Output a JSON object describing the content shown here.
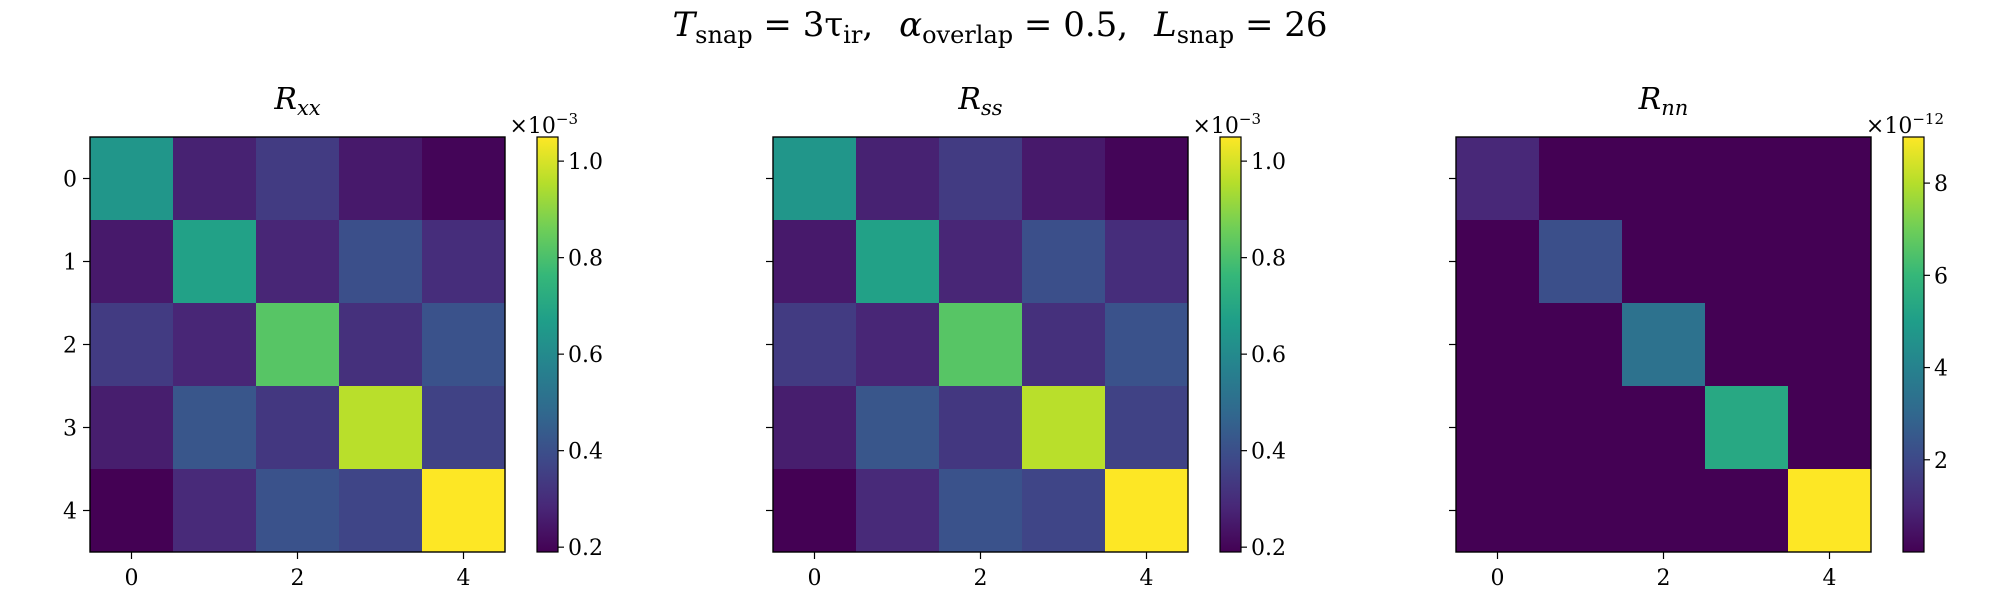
{
  "suptitle": {
    "t_symbol": "T",
    "t_sub": "snap",
    "t_rest": " = 3τ",
    "t_rest_sub": "ir",
    "a_symbol": "α",
    "a_sub": "overlap",
    "a_rest": " = 0.5,",
    "l_symbol": "L",
    "l_sub": "snap",
    "l_rest": " = 26",
    "comma1": ","
  },
  "colormap": {
    "name": "viridis",
    "stops": [
      "#440154",
      "#482878",
      "#3e4989",
      "#31688e",
      "#26828e",
      "#1f9e89",
      "#35b779",
      "#6ece58",
      "#b5de2b",
      "#fde725"
    ]
  },
  "chart_data": [
    {
      "type": "heatmap",
      "title_main": "R",
      "title_sub": "xx",
      "rows": [
        0,
        1,
        2,
        3,
        4
      ],
      "cols": [
        0,
        1,
        2,
        3,
        4
      ],
      "values": [
        [
          0.64,
          0.27,
          0.34,
          0.25,
          0.2
        ],
        [
          0.25,
          0.68,
          0.28,
          0.4,
          0.3
        ],
        [
          0.34,
          0.28,
          0.82,
          0.31,
          0.41
        ],
        [
          0.26,
          0.42,
          0.33,
          0.96,
          0.36
        ],
        [
          0.19,
          0.29,
          0.41,
          0.37,
          1.05
        ]
      ],
      "unit_multiplier": "×10",
      "unit_exponent": "−3",
      "vmin": 0.19,
      "vmax": 1.05,
      "colorbar_ticks": [
        0.2,
        0.4,
        0.6,
        0.8,
        1.0
      ],
      "colorbar_tick_labels": [
        "0.2",
        "0.4",
        "0.6",
        "0.8",
        "1.0"
      ],
      "x_ticks": [
        0,
        2,
        4
      ],
      "x_tick_labels": [
        "0",
        "2",
        "4"
      ],
      "y_ticks": [
        0,
        1,
        2,
        3,
        4
      ],
      "y_tick_labels": [
        "0",
        "1",
        "2",
        "3",
        "4"
      ]
    },
    {
      "type": "heatmap",
      "title_main": "R",
      "title_sub": "ss",
      "rows": [
        0,
        1,
        2,
        3,
        4
      ],
      "cols": [
        0,
        1,
        2,
        3,
        4
      ],
      "values": [
        [
          0.64,
          0.27,
          0.34,
          0.25,
          0.2
        ],
        [
          0.25,
          0.68,
          0.28,
          0.4,
          0.3
        ],
        [
          0.34,
          0.28,
          0.82,
          0.31,
          0.41
        ],
        [
          0.26,
          0.42,
          0.33,
          0.96,
          0.36
        ],
        [
          0.19,
          0.29,
          0.41,
          0.37,
          1.05
        ]
      ],
      "unit_multiplier": "×10",
      "unit_exponent": "−3",
      "vmin": 0.19,
      "vmax": 1.05,
      "colorbar_ticks": [
        0.2,
        0.4,
        0.6,
        0.8,
        1.0
      ],
      "colorbar_tick_labels": [
        "0.2",
        "0.4",
        "0.6",
        "0.8",
        "1.0"
      ],
      "x_ticks": [
        0,
        2,
        4
      ],
      "x_tick_labels": [
        "0",
        "2",
        "4"
      ],
      "y_ticks": [
        0,
        1,
        2,
        3,
        4
      ],
      "y_tick_labels": []
    },
    {
      "type": "heatmap",
      "title_main": "R",
      "title_sub": "nn",
      "rows": [
        0,
        1,
        2,
        3,
        4
      ],
      "cols": [
        0,
        1,
        2,
        3,
        4
      ],
      "values": [
        [
          1.0,
          0.0,
          0.0,
          0.0,
          0.0
        ],
        [
          0.0,
          2.2,
          0.0,
          0.0,
          0.0
        ],
        [
          0.0,
          0.0,
          3.4,
          0.0,
          0.0
        ],
        [
          0.0,
          0.0,
          0.0,
          5.4,
          0.0
        ],
        [
          0.0,
          0.0,
          0.0,
          0.0,
          9.0
        ]
      ],
      "unit_multiplier": "×10",
      "unit_exponent": "−12",
      "vmin": 0.0,
      "vmax": 9.0,
      "colorbar_ticks": [
        2,
        4,
        6,
        8
      ],
      "colorbar_tick_labels": [
        "2",
        "4",
        "6",
        "8"
      ],
      "x_ticks": [
        0,
        2,
        4
      ],
      "x_tick_labels": [
        "0",
        "2",
        "4"
      ],
      "y_ticks": [
        0,
        1,
        2,
        3,
        4
      ],
      "y_tick_labels": []
    }
  ]
}
